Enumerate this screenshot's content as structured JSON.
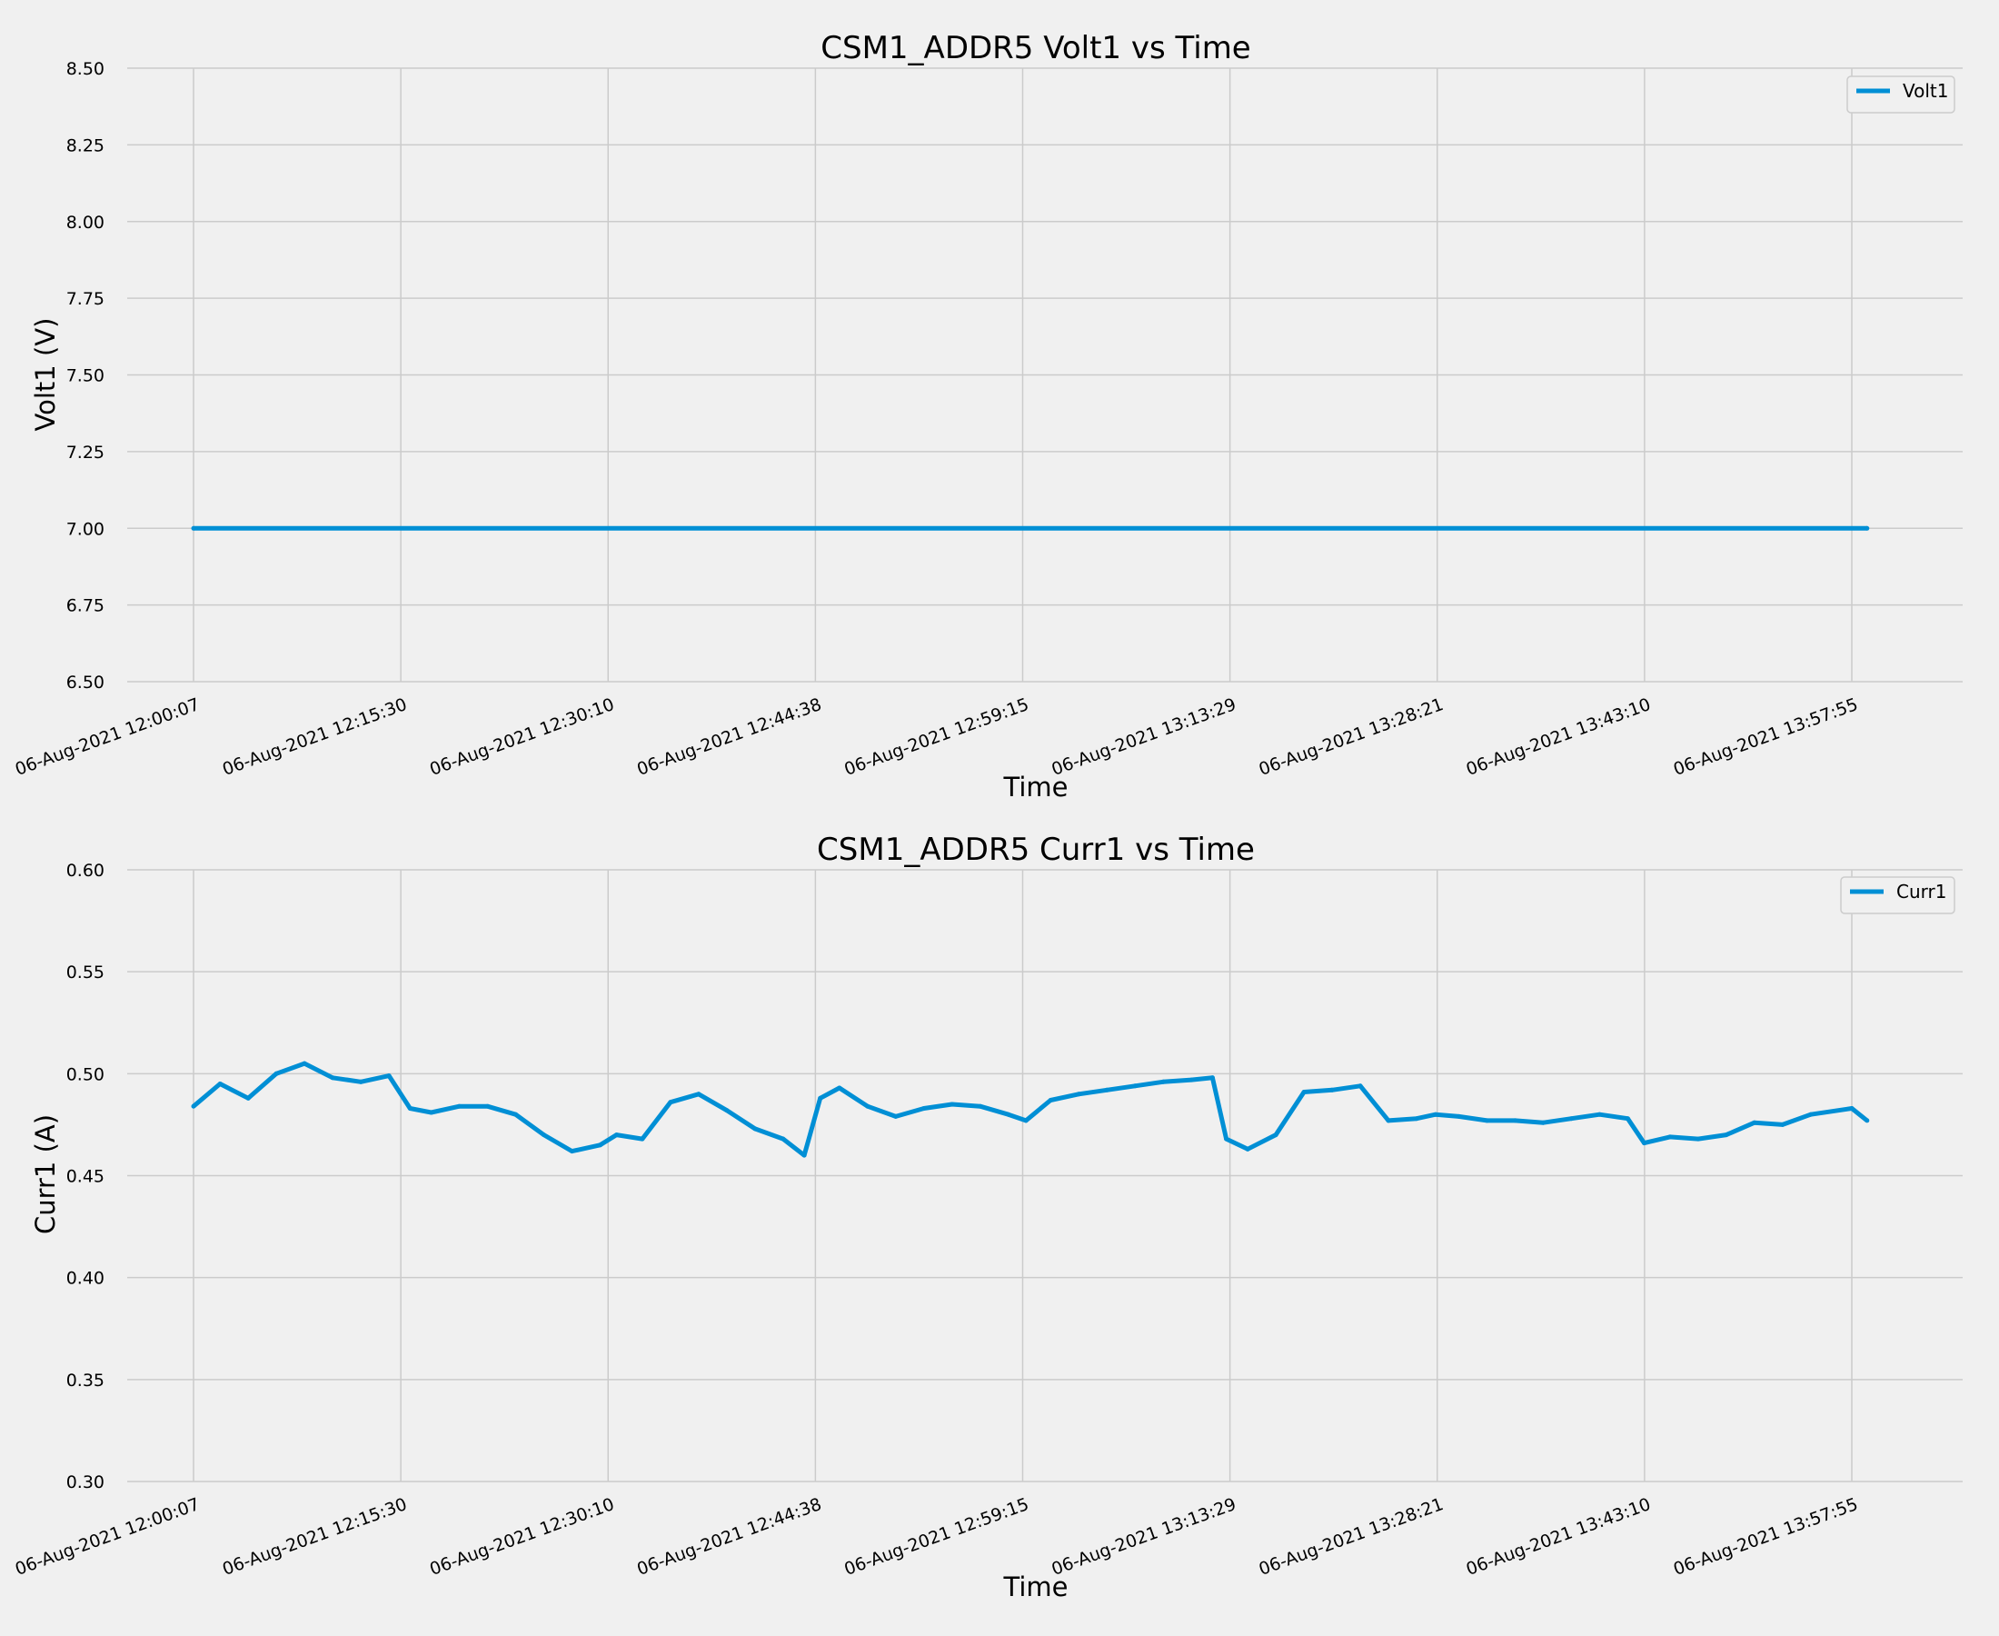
{
  "chart_data": [
    {
      "type": "line",
      "title": "CSM1_ADDR5 Volt1 vs Time",
      "xlabel": "Time",
      "ylabel": "Volt1 (V)",
      "ylim": [
        6.5,
        8.5
      ],
      "yticks": [
        "6.50",
        "6.75",
        "7.00",
        "7.25",
        "7.50",
        "7.75",
        "8.00",
        "8.25",
        "8.50"
      ],
      "xticks": [
        "06-Aug-2021 12:00:07",
        "06-Aug-2021 12:15:30",
        "06-Aug-2021 12:30:10",
        "06-Aug-2021 12:44:38",
        "06-Aug-2021 12:59:15",
        "06-Aug-2021 13:13:29",
        "06-Aug-2021 13:28:21",
        "06-Aug-2021 13:43:10",
        "06-Aug-2021 13:57:55"
      ],
      "grid": true,
      "legend_position": "top-right",
      "color": "#008fd5",
      "series": [
        {
          "name": "Volt1",
          "x": [
            "06-Aug-2021 12:00:07",
            "06-Aug-2021 13:59:00"
          ],
          "values": [
            7.0,
            7.0
          ]
        }
      ]
    },
    {
      "type": "line",
      "title": "CSM1_ADDR5 Curr1 vs Time",
      "xlabel": "Time",
      "ylabel": "Curr1 (A)",
      "ylim": [
        0.3,
        0.6
      ],
      "yticks": [
        "0.30",
        "0.35",
        "0.40",
        "0.45",
        "0.50",
        "0.55",
        "0.60"
      ],
      "xticks": [
        "06-Aug-2021 12:00:07",
        "06-Aug-2021 12:15:30",
        "06-Aug-2021 12:30:10",
        "06-Aug-2021 12:44:38",
        "06-Aug-2021 12:59:15",
        "06-Aug-2021 13:13:29",
        "06-Aug-2021 13:28:21",
        "06-Aug-2021 13:43:10",
        "06-Aug-2021 13:57:55"
      ],
      "grid": true,
      "legend_position": "top-right",
      "color": "#008fd5",
      "series": [
        {
          "name": "Curr1",
          "x": [
            "06-Aug-2021 12:00:07",
            "06-Aug-2021 12:02:00",
            "06-Aug-2021 12:04:00",
            "06-Aug-2021 12:06:00",
            "06-Aug-2021 12:08:00",
            "06-Aug-2021 12:10:00",
            "06-Aug-2021 12:12:00",
            "06-Aug-2021 12:14:00",
            "06-Aug-2021 12:15:30",
            "06-Aug-2021 12:17:00",
            "06-Aug-2021 12:19:00",
            "06-Aug-2021 12:21:00",
            "06-Aug-2021 12:23:00",
            "06-Aug-2021 12:25:00",
            "06-Aug-2021 12:27:00",
            "06-Aug-2021 12:29:00",
            "06-Aug-2021 12:30:10",
            "06-Aug-2021 12:32:00",
            "06-Aug-2021 12:34:00",
            "06-Aug-2021 12:36:00",
            "06-Aug-2021 12:38:00",
            "06-Aug-2021 12:40:00",
            "06-Aug-2021 12:42:00",
            "06-Aug-2021 12:43:30",
            "06-Aug-2021 12:44:38",
            "06-Aug-2021 12:46:00",
            "06-Aug-2021 12:48:00",
            "06-Aug-2021 12:50:00",
            "06-Aug-2021 12:52:00",
            "06-Aug-2021 12:54:00",
            "06-Aug-2021 12:56:00",
            "06-Aug-2021 12:58:00",
            "06-Aug-2021 12:59:15",
            "06-Aug-2021 13:01:00",
            "06-Aug-2021 13:03:00",
            "06-Aug-2021 13:05:00",
            "06-Aug-2021 13:07:00",
            "06-Aug-2021 13:09:00",
            "06-Aug-2021 13:11:00",
            "06-Aug-2021 13:12:30",
            "06-Aug-2021 13:13:29",
            "06-Aug-2021 13:15:00",
            "06-Aug-2021 13:17:00",
            "06-Aug-2021 13:19:00",
            "06-Aug-2021 13:21:00",
            "06-Aug-2021 13:23:00",
            "06-Aug-2021 13:25:00",
            "06-Aug-2021 13:27:00",
            "06-Aug-2021 13:28:21",
            "06-Aug-2021 13:30:00",
            "06-Aug-2021 13:32:00",
            "06-Aug-2021 13:34:00",
            "06-Aug-2021 13:36:00",
            "06-Aug-2021 13:38:00",
            "06-Aug-2021 13:40:00",
            "06-Aug-2021 13:42:00",
            "06-Aug-2021 13:43:10",
            "06-Aug-2021 13:45:00",
            "06-Aug-2021 13:47:00",
            "06-Aug-2021 13:49:00",
            "06-Aug-2021 13:51:00",
            "06-Aug-2021 13:53:00",
            "06-Aug-2021 13:55:00",
            "06-Aug-2021 13:57:55",
            "06-Aug-2021 13:59:00"
          ],
          "values": [
            0.484,
            0.495,
            0.488,
            0.5,
            0.505,
            0.498,
            0.496,
            0.499,
            0.483,
            0.481,
            0.484,
            0.484,
            0.48,
            0.47,
            0.462,
            0.465,
            0.47,
            0.468,
            0.486,
            0.49,
            0.482,
            0.473,
            0.468,
            0.46,
            0.488,
            0.493,
            0.484,
            0.479,
            0.483,
            0.485,
            0.484,
            0.48,
            0.477,
            0.487,
            0.49,
            0.492,
            0.494,
            0.496,
            0.497,
            0.498,
            0.468,
            0.463,
            0.47,
            0.491,
            0.492,
            0.494,
            0.477,
            0.478,
            0.48,
            0.479,
            0.477,
            0.477,
            0.476,
            0.478,
            0.48,
            0.478,
            0.466,
            0.469,
            0.468,
            0.47,
            0.476,
            0.475,
            0.48,
            0.483,
            0.477
          ]
        }
      ]
    }
  ]
}
